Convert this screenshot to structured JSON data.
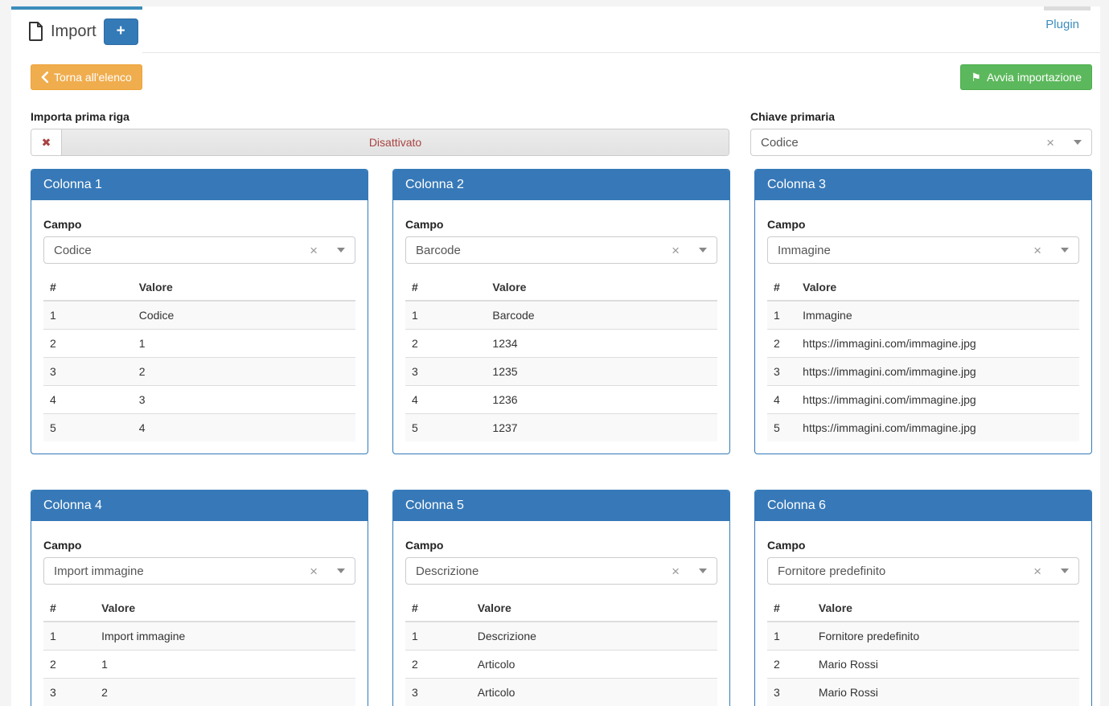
{
  "tab": {
    "title": "Import",
    "add_button_label": "+"
  },
  "header": {
    "plugin_link": "Plugin"
  },
  "toolbar": {
    "back_button": "Torna all'elenco",
    "start_button": "Avvia importazione"
  },
  "form": {
    "import_first_row": {
      "label": "Importa prima riga",
      "state_label": "Disattivato",
      "clear_glyph": "✖"
    },
    "primary_key": {
      "label": "Chiave primaria",
      "value": "Codice",
      "clear_glyph": "×"
    }
  },
  "panel_common": {
    "field_label": "Campo",
    "col_index_header": "#",
    "col_value_header": "Valore",
    "clear_glyph": "×"
  },
  "columns": [
    {
      "title": "Colonna 1",
      "field": "Codice",
      "rows": [
        [
          "1",
          "Codice"
        ],
        [
          "2",
          "1"
        ],
        [
          "3",
          "2"
        ],
        [
          "4",
          "3"
        ],
        [
          "5",
          "4"
        ]
      ]
    },
    {
      "title": "Colonna 2",
      "field": "Barcode",
      "rows": [
        [
          "1",
          "Barcode"
        ],
        [
          "2",
          "1234"
        ],
        [
          "3",
          "1235"
        ],
        [
          "4",
          "1236"
        ],
        [
          "5",
          "1237"
        ]
      ]
    },
    {
      "title": "Colonna 3",
      "field": "Immagine",
      "rows": [
        [
          "1",
          "Immagine"
        ],
        [
          "2",
          "https://immagini.com/immagine.jpg"
        ],
        [
          "3",
          "https://immagini.com/immagine.jpg"
        ],
        [
          "4",
          "https://immagini.com/immagine.jpg"
        ],
        [
          "5",
          "https://immagini.com/immagine.jpg"
        ]
      ]
    },
    {
      "title": "Colonna 4",
      "field": "Import immagine",
      "rows": [
        [
          "1",
          "Import immagine"
        ],
        [
          "2",
          "1"
        ],
        [
          "3",
          "2"
        ]
      ]
    },
    {
      "title": "Colonna 5",
      "field": "Descrizione",
      "rows": [
        [
          "1",
          "Descrizione"
        ],
        [
          "2",
          "Articolo"
        ],
        [
          "3",
          "Articolo"
        ]
      ]
    },
    {
      "title": "Colonna 6",
      "field": "Fornitore predefinito",
      "rows": [
        [
          "1",
          "Fornitore predefinito"
        ],
        [
          "2",
          "Mario Rossi"
        ],
        [
          "3",
          "Mario Rossi"
        ]
      ]
    }
  ],
  "colors": {
    "accent_blue": "#337ab7",
    "tab_border_blue": "#3c8dbc",
    "warning_orange": "#f0ad4e",
    "success_green": "#5cb85c",
    "danger_red": "#a94442",
    "stripe_grey": "#f9f9f9"
  }
}
